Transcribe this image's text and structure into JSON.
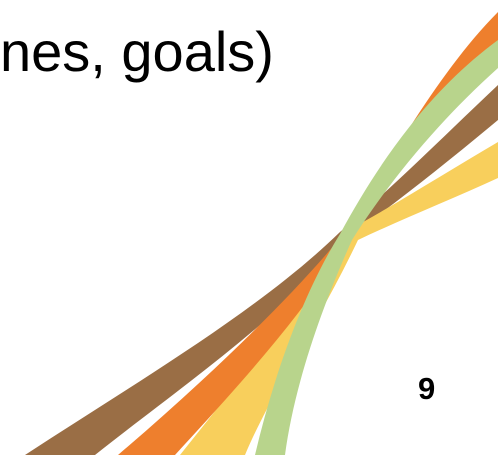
{
  "slide": {
    "title_fragment": "nes, goals)",
    "slide_number": "9"
  },
  "decoration": {
    "colors": {
      "brown": "#9a6e45",
      "orange": "#ee7f2d",
      "yellow": "#f8cf5c",
      "green": "#b8d48c"
    }
  }
}
